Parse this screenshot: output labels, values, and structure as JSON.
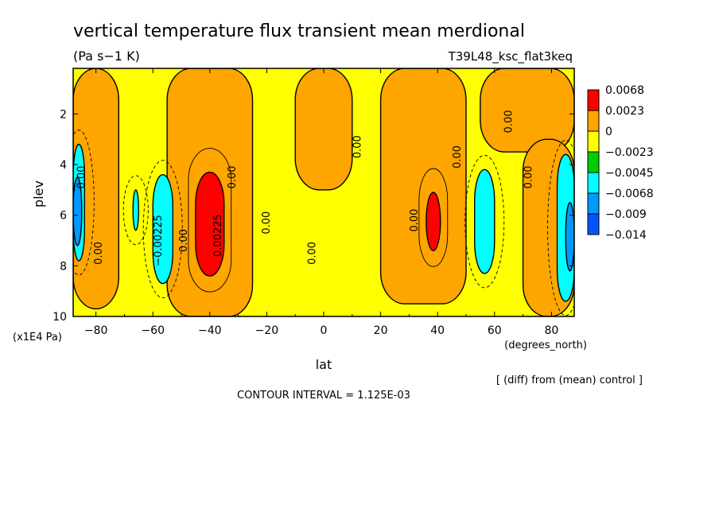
{
  "chart_data": {
    "type": "contour",
    "title": "vertical temperature flux transient mean merdional",
    "units": "(Pa s−1 K)",
    "experiment": "T39L48_ksc_flat3keq",
    "xlabel": "lat",
    "x_units": "(degrees_north)",
    "ylabel": "plev",
    "y_units": "(x1E4 Pa)",
    "xlim": [
      -88,
      88
    ],
    "ylim": [
      10,
      0.2
    ],
    "x_ticks": [
      -80,
      -60,
      -40,
      -20,
      0,
      20,
      40,
      60,
      80
    ],
    "x_tick_labels": [
      "−80",
      "−60",
      "−40",
      "−20",
      "0",
      "20",
      "40",
      "60",
      "80"
    ],
    "y_ticks": [
      2,
      4,
      6,
      8,
      10
    ],
    "y_tick_labels": [
      "2",
      "4",
      "6",
      "8",
      "10"
    ],
    "footer_note": "[ (diff) from (mean) control ]",
    "contour_interval_text": "CONTOUR INTERVAL = 1.125E-03",
    "colorbar": {
      "levels": [
        "0.0068",
        "0.0023",
        "0",
        "−0.0023",
        "−0.0045",
        "−0.0068",
        "−0.009",
        "−0.014"
      ],
      "colors": [
        "#ff0000",
        "#ffa500",
        "#ffff00",
        "#00cc00",
        "#00ffff",
        "#0099ff",
        "#0055ff"
      ]
    },
    "contour_labels": [
      {
        "text": "0.00",
        "lat": -84,
        "plev": 4.5
      },
      {
        "text": "0.00",
        "lat": -78,
        "plev": 7.5
      },
      {
        "text": "−0.00225",
        "lat": -57,
        "plev": 7.0
      },
      {
        "text": "0.00",
        "lat": -48,
        "plev": 7.0
      },
      {
        "text": "0.00225",
        "lat": -36,
        "plev": 6.8
      },
      {
        "text": "0.00",
        "lat": -31,
        "plev": 4.5
      },
      {
        "text": "0.00",
        "lat": -19,
        "plev": 6.3
      },
      {
        "text": "0.00",
        "lat": -3,
        "plev": 7.5
      },
      {
        "text": "0.00",
        "lat": 13,
        "plev": 3.3
      },
      {
        "text": "0.00",
        "lat": 33,
        "plev": 6.2
      },
      {
        "text": "0.00",
        "lat": 48,
        "plev": 3.7
      },
      {
        "text": "0.00",
        "lat": 66,
        "plev": 2.3
      },
      {
        "text": "0.00",
        "lat": 73,
        "plev": 4.5
      }
    ],
    "regions": [
      {
        "level": "0.0023",
        "lat_min": -88,
        "lat_max": -72,
        "plev_min": 0.2,
        "plev_max": 9.7
      },
      {
        "level": "0.0023",
        "lat_min": -55,
        "lat_max": -25,
        "plev_min": 0.2,
        "plev_max": 10
      },
      {
        "level": "0.0023",
        "lat_min": -10,
        "lat_max": 10,
        "plev_min": 0.2,
        "plev_max": 5
      },
      {
        "level": "0.0023",
        "lat_min": 20,
        "lat_max": 50,
        "plev_min": 0.2,
        "plev_max": 9.5
      },
      {
        "level": "0.0023",
        "lat_min": 55,
        "lat_max": 88,
        "plev_min": 0.2,
        "plev_max": 3.5
      },
      {
        "level": "0.0023",
        "lat_min": 70,
        "lat_max": 88,
        "plev_min": 3,
        "plev_max": 10
      },
      {
        "level": "0.0068",
        "lat_min": -45,
        "lat_max": -35,
        "plev_min": 4.3,
        "plev_max": 8.4
      },
      {
        "level": "0.0068",
        "lat_min": 36,
        "lat_max": 41,
        "plev_min": 5.1,
        "plev_max": 7.4
      },
      {
        "level": "−0.0045",
        "lat_min": -60,
        "lat_max": -53,
        "plev_min": 4.4,
        "plev_max": 8.7
      },
      {
        "level": "−0.0045",
        "lat_min": 53,
        "lat_max": 60,
        "plev_min": 4.2,
        "plev_max": 8.3
      },
      {
        "level": "−0.0045",
        "lat_min": 82,
        "lat_max": 88,
        "plev_min": 3.6,
        "plev_max": 9.4
      },
      {
        "level": "−0.0045",
        "lat_min": -88,
        "lat_max": -84,
        "plev_min": 3.2,
        "plev_max": 7.8
      },
      {
        "level": "−0.0068",
        "lat_min": -88,
        "lat_max": -85,
        "plev_min": 4.5,
        "plev_max": 7.2
      },
      {
        "level": "−0.0068",
        "lat_min": 85,
        "lat_max": 88,
        "plev_min": 5.5,
        "plev_max": 8.2
      },
      {
        "level": "−0.0045",
        "lat_min": -67,
        "lat_max": -65,
        "plev_min": 5.0,
        "plev_max": 6.6
      }
    ]
  }
}
